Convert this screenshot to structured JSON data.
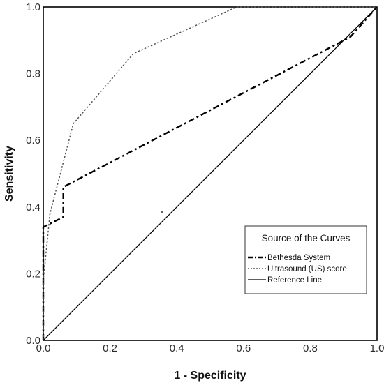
{
  "chart_data": {
    "type": "line",
    "xlabel": "1 - Specificity",
    "ylabel": "Sensitivity",
    "xlim": [
      0,
      1
    ],
    "ylim": [
      0,
      1
    ],
    "x_ticks": [
      "0.0",
      "0.2",
      "0.4",
      "0.6",
      "0.8",
      "1.0"
    ],
    "y_ticks": [
      "0.0",
      "0.2",
      "0.4",
      "0.6",
      "0.8",
      "1.0"
    ],
    "grid": false,
    "legend": {
      "title": "Source of the Curves",
      "placement": "bottom-right",
      "entries": [
        "Bethesda System",
        "Ultrasound (US) score",
        "Reference Line"
      ]
    },
    "series": [
      {
        "name": "Bethesda System",
        "style": "dash-dot",
        "color": "#000000",
        "points": [
          [
            0,
            0
          ],
          [
            0,
            0.34
          ],
          [
            0.06,
            0.37
          ],
          [
            0.06,
            0.46
          ],
          [
            0.92,
            0.91
          ],
          [
            1,
            1
          ]
        ]
      },
      {
        "name": "Ultrasound (US) score",
        "style": "dotted",
        "color": "#555555",
        "points": [
          [
            0,
            0
          ],
          [
            0,
            0.18
          ],
          [
            0.02,
            0.38
          ],
          [
            0.09,
            0.65
          ],
          [
            0.27,
            0.86
          ],
          [
            0.58,
            1
          ],
          [
            1,
            1
          ]
        ]
      },
      {
        "name": "Reference Line",
        "style": "solid",
        "color": "#000000",
        "points": [
          [
            0,
            0
          ],
          [
            1,
            1
          ]
        ]
      }
    ]
  }
}
